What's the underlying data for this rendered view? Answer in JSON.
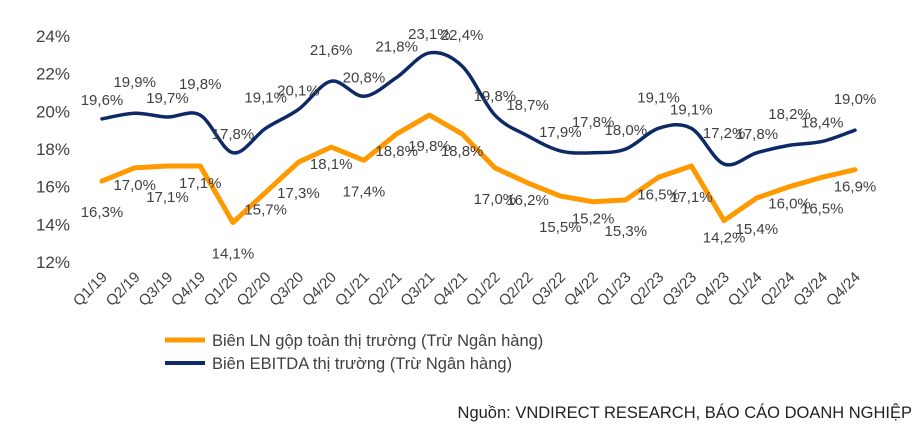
{
  "chart_data": {
    "type": "line",
    "categories": [
      "Q1/19",
      "Q2/19",
      "Q3/19",
      "Q4/19",
      "Q1/20",
      "Q2/20",
      "Q3/20",
      "Q4/20",
      "Q1/21",
      "Q2/21",
      "Q3/21",
      "Q4/21",
      "Q1/22",
      "Q2/22",
      "Q3/22",
      "Q4/22",
      "Q1/23",
      "Q2/23",
      "Q3/23",
      "Q4/23",
      "Q1/24",
      "Q2/24",
      "Q3/24",
      "Q4/24"
    ],
    "ylim": [
      12,
      24
    ],
    "yticks": [
      "12%",
      "14%",
      "16%",
      "18%",
      "20%",
      "22%",
      "24%"
    ],
    "grid": false,
    "legend_position": "bottom",
    "series": [
      {
        "name": "Biên LN gộp toàn thị trường (Trừ Ngân hàng)",
        "color": "#FF9900",
        "smooth": false,
        "values": [
          16.3,
          17.0,
          17.1,
          17.1,
          14.1,
          15.7,
          17.3,
          18.1,
          17.4,
          18.8,
          19.8,
          18.8,
          17.0,
          16.2,
          15.5,
          15.2,
          15.3,
          16.5,
          17.1,
          14.2,
          15.4,
          16.0,
          16.5,
          16.9
        ],
        "labels": [
          "16,3%",
          "17,0%",
          "17,1%",
          "17,1%",
          "14,1%",
          "15,7%",
          "17,3%",
          "18,1%",
          "17,4%",
          "18,8%",
          "19,8%",
          "18,8%",
          "17,0%",
          "16,2%",
          "15,5%",
          "15,2%",
          "15,3%",
          "16,5%",
          "17,1%",
          "14,2%",
          "15,4%",
          "16,0%",
          "16,5%",
          "16,9%"
        ]
      },
      {
        "name": "Biên EBITDA thị trường (Trừ Ngân hàng)",
        "color": "#0E2A66",
        "smooth": true,
        "values": [
          19.6,
          19.9,
          19.7,
          19.8,
          17.8,
          19.1,
          20.1,
          21.6,
          20.8,
          21.8,
          23.1,
          22.4,
          19.8,
          18.7,
          17.9,
          17.8,
          18.0,
          19.1,
          19.1,
          17.2,
          17.8,
          18.2,
          18.4,
          19.0
        ],
        "labels": [
          "19,6%",
          "19,9%",
          "19,7%",
          "19,8%",
          "17,8%",
          "19,1%",
          "20,1%",
          "21,6%",
          "20,8%",
          "21,8%",
          "23,1%",
          "22,4%",
          "19,8%",
          "18,7%",
          "17,9%",
          "17,8%",
          "18,0%",
          "19,1%",
          "19,1%",
          "17,2%",
          "17,8%",
          "18,2%",
          "18,4%",
          "19,0%"
        ]
      }
    ]
  },
  "source": "Nguồn: VNDIRECT RESEARCH, BÁO CÁO DOANH NGHIỆP"
}
